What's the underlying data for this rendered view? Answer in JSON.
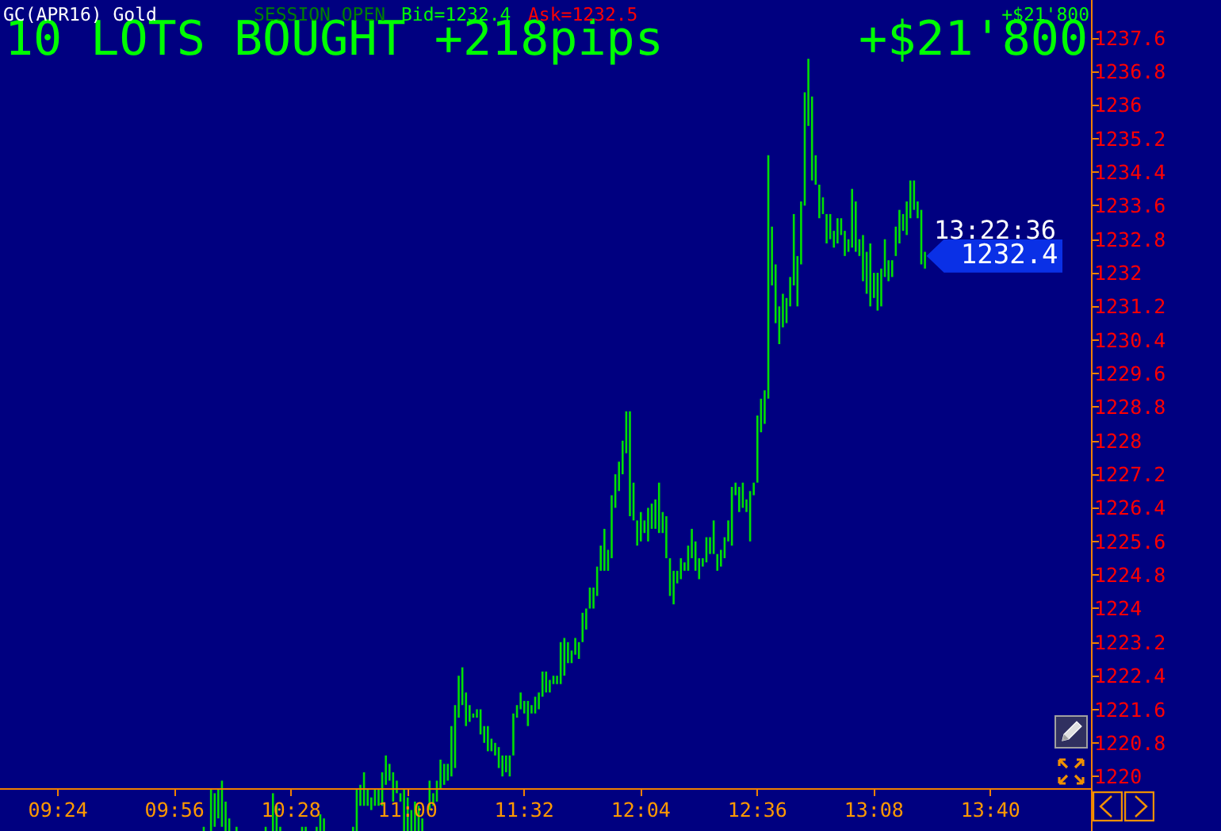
{
  "chart_data": {
    "type": "bar",
    "title": "10 LOTS BOUGHT +218pips",
    "subtitle": "+$21'800",
    "annotations": [
      "GC(APR16) Gold",
      "SESSION OPEN",
      "Bid=1232.4",
      "Ask=1232.5",
      "+$21'800",
      "13:22:36",
      {
        "text": "1232.4",
        "x": 13.3667,
        "y": 1232.4
      }
    ],
    "color": "#00e000",
    "x": [
      10.0667,
      10.1,
      10.1167,
      10.1333,
      10.15,
      10.1667,
      10.1833,
      10.2167,
      10.35,
      10.3833,
      10.4,
      10.4167,
      10.5167,
      10.5333,
      10.5833,
      10.6,
      10.6167,
      10.75,
      10.7667,
      10.7833,
      10.8,
      10.8167,
      10.8333,
      10.85,
      10.8667,
      10.8833,
      10.9,
      10.9167,
      10.9333,
      10.95,
      10.9667,
      10.9833,
      11,
      11.0167,
      11.0333,
      11.05,
      11.0667,
      11.1,
      11.1167,
      11.1333,
      11.15,
      11.1667,
      11.1833,
      11.2,
      11.2167,
      11.2333,
      11.25,
      11.2667,
      11.2833,
      11.3,
      11.3167,
      11.3333,
      11.35,
      11.3667,
      11.3833,
      11.4,
      11.4167,
      11.4333,
      11.45,
      11.4667,
      11.4833,
      11.5,
      11.5167,
      11.5333,
      11.55,
      11.5667,
      11.5833,
      11.6,
      11.6167,
      11.6333,
      11.65,
      11.6667,
      11.6833,
      11.7,
      11.7167,
      11.7333,
      11.75,
      11.7667,
      11.7833,
      11.8,
      11.8167,
      11.8333,
      11.85,
      11.8667,
      11.8833,
      11.9,
      11.9167,
      11.9333,
      11.95,
      11.9667,
      11.9833,
      12,
      12.0167,
      12.0333,
      12.05,
      12.0667,
      12.0833,
      12.1,
      12.1167,
      12.1333,
      12.15,
      12.1667,
      12.1833,
      12.2,
      12.2167,
      12.2333,
      12.25,
      12.2667,
      12.2833,
      12.3,
      12.3167,
      12.3333,
      12.35,
      12.3667,
      12.3833,
      12.4,
      12.4167,
      12.4333,
      12.45,
      12.4667,
      12.4833,
      12.5,
      12.5167,
      12.5333,
      12.55,
      12.5667,
      12.5833,
      12.6,
      12.6167,
      12.6333,
      12.65,
      12.6667,
      12.6833,
      12.7,
      12.7167,
      12.7333,
      12.75,
      12.7667,
      12.7833,
      12.8,
      12.8167,
      12.8333,
      12.85,
      12.8667,
      12.8833,
      12.9,
      12.9167,
      12.9333,
      12.95,
      12.9667,
      12.9833,
      13,
      13.0167,
      13.0333,
      13.05,
      13.0667,
      13.0833,
      13.1,
      13.1167,
      13.1333,
      13.15,
      13.1667,
      13.1833,
      13.2,
      13.2167,
      13.2333,
      13.25,
      13.2667,
      13.2833,
      13.3,
      13.3167,
      13.3333,
      13.35,
      13.3667
    ],
    "base": [
      1218.7,
      1218.7,
      1218.8,
      1219.0,
      1218.8,
      1218.7,
      1218.7,
      1218.7,
      1218.7,
      1218.7,
      1218.7,
      1218.7,
      1218.7,
      1218.7,
      1218.7,
      1218.7,
      1218.7,
      1218.7,
      1218.7,
      1219.3,
      1219.3,
      1219.3,
      1219.2,
      1219.3,
      1219.3,
      1219.3,
      1219.8,
      1219.9,
      1219.4,
      1219.6,
      1219.4,
      1218.7,
      1218.7,
      1218.7,
      1218.7,
      1218.7,
      1218.7,
      1219.2,
      1219.3,
      1219.4,
      1219.7,
      1219.8,
      1219.9,
      1220.0,
      1220.2,
      1221.4,
      1221.7,
      1221.2,
      1221.3,
      1221.4,
      1221.4,
      1221.0,
      1220.8,
      1220.6,
      1220.6,
      1220.5,
      1220.2,
      1220.0,
      1220.1,
      1220.0,
      1220.5,
      1221.4,
      1221.6,
      1221.5,
      1221.2,
      1221.5,
      1221.5,
      1221.6,
      1221.9,
      1222.0,
      1222.0,
      1222.2,
      1222.2,
      1222.2,
      1222.4,
      1222.7,
      1222.7,
      1222.9,
      1222.8,
      1223.2,
      1223.5,
      1224.0,
      1224.0,
      1224.3,
      1224.9,
      1224.9,
      1224.9,
      1225.2,
      1226.4,
      1226.8,
      1227.2,
      1227.7,
      1226.2,
      1226.1,
      1225.5,
      1225.6,
      1225.8,
      1225.6,
      1225.9,
      1225.9,
      1225.8,
      1225.8,
      1225.2,
      1224.3,
      1224.1,
      1224.6,
      1224.7,
      1224.9,
      1224.9,
      1225.2,
      1224.9,
      1224.7,
      1225.0,
      1225.1,
      1225.3,
      1225.3,
      1224.9,
      1225.0,
      1225.2,
      1225.6,
      1225.5,
      1226.7,
      1226.3,
      1226.4,
      1226.3,
      1225.6,
      1226.7,
      1227.0,
      1228.2,
      1228.4,
      1229.0,
      1231.7,
      1230.8,
      1230.3,
      1230.7,
      1230.8,
      1231.2,
      1231.7,
      1231.2,
      1232.2,
      1233.6,
      1235.5,
      1234.2,
      1234.1,
      1233.3,
      1233.4,
      1232.7,
      1232.8,
      1232.6,
      1232.7,
      1232.9,
      1232.4,
      1232.5,
      1232.6,
      1232.5,
      1232.4,
      1231.8,
      1231.5,
      1231.2,
      1231.4,
      1231.1,
      1231.2,
      1231.9,
      1231.8,
      1231.9,
      1232.4,
      1232.7,
      1233.0,
      1232.9,
      1233.3,
      1233.5,
      1233.3,
      1232.2,
      1232.1
    ],
    "values": [
      0.1,
      1.0,
      0.8,
      0.7,
      1.1,
      0.7,
      0.3,
      0.1,
      0.1,
      0.9,
      0.6,
      0.1,
      0.1,
      0.1,
      0.1,
      0.4,
      0.3,
      0.1,
      1.0,
      0.5,
      0.8,
      0.4,
      0.3,
      0.4,
      0.4,
      0.8,
      0.7,
      0.4,
      0.7,
      0.3,
      0.2,
      1.0,
      0.8,
      0.5,
      0.7,
      0.6,
      0.3,
      0.7,
      0.3,
      0.5,
      0.7,
      0.5,
      0.4,
      1.2,
      1.5,
      1.0,
      0.9,
      0.8,
      0.4,
      0.1,
      0.2,
      0.6,
      0.4,
      0.6,
      0.3,
      0.3,
      0.5,
      0.5,
      0.4,
      0.5,
      1.0,
      0.3,
      0.4,
      0.3,
      0.6,
      0.2,
      0.4,
      0.4,
      0.6,
      0.5,
      0.3,
      0.2,
      0.2,
      1.0,
      0.9,
      0.5,
      0.3,
      0.4,
      0.4,
      0.7,
      0.5,
      0.5,
      0.5,
      0.7,
      0.6,
      1.0,
      0.5,
      1.5,
      0.8,
      0.7,
      0.8,
      1.0,
      2.5,
      0.9,
      0.6,
      0.7,
      0.3,
      0.8,
      0.6,
      0.7,
      1.2,
      0.5,
      1.0,
      0.9,
      0.8,
      0.3,
      0.5,
      0.2,
      0.6,
      0.7,
      0.7,
      0.5,
      0.2,
      0.6,
      0.4,
      0.8,
      0.4,
      0.4,
      0.5,
      0.5,
      1.4,
      0.3,
      0.6,
      0.6,
      0.3,
      1.2,
      0.3,
      1.6,
      0.8,
      0.8,
      5.8,
      1.4,
      1.4,
      0.9,
      0.8,
      0.6,
      0.7,
      1.7,
      1.2,
      1.5,
      2.7,
      1.6,
      2.0,
      0.7,
      0.8,
      0.4,
      0.7,
      0.6,
      0.4,
      0.6,
      0.4,
      0.6,
      0.3,
      1.4,
      1.2,
      0.4,
      1.1,
      1.0,
      1.5,
      0.6,
      0.9,
      0.9,
      0.9,
      0.5,
      0.4,
      0.7,
      0.8,
      0.4,
      0.8,
      0.9,
      0.7,
      0.4,
      1.3,
      0.4
    ],
    "xlim": [
      9.1344,
      14.1264
    ],
    "xticks": [
      {
        "value": 9.4,
        "label": "09:24"
      },
      {
        "value": 9.9333,
        "label": "09:56"
      },
      {
        "value": 10.4667,
        "label": "10:28"
      },
      {
        "value": 11,
        "label": "11:00"
      },
      {
        "value": 11.5333,
        "label": "11:32"
      },
      {
        "value": 12.0667,
        "label": "12:04"
      },
      {
        "value": 12.6,
        "label": "12:36"
      },
      {
        "value": 13.1333,
        "label": "13:08"
      },
      {
        "value": 13.6667,
        "label": "13:40"
      }
    ],
    "ylim": [
      1218.7,
      1238.5
    ],
    "yticks": [
      1220,
      1220.8,
      1221.6,
      1222.4,
      1223.2,
      1224,
      1224.8,
      1225.6,
      1226.4,
      1227.2,
      1228,
      1228.8,
      1229.6,
      1230.4,
      1231.2,
      1232,
      1232.8,
      1233.6,
      1234.4,
      1235.2,
      1236,
      1236.8,
      1237.6
    ]
  }
}
